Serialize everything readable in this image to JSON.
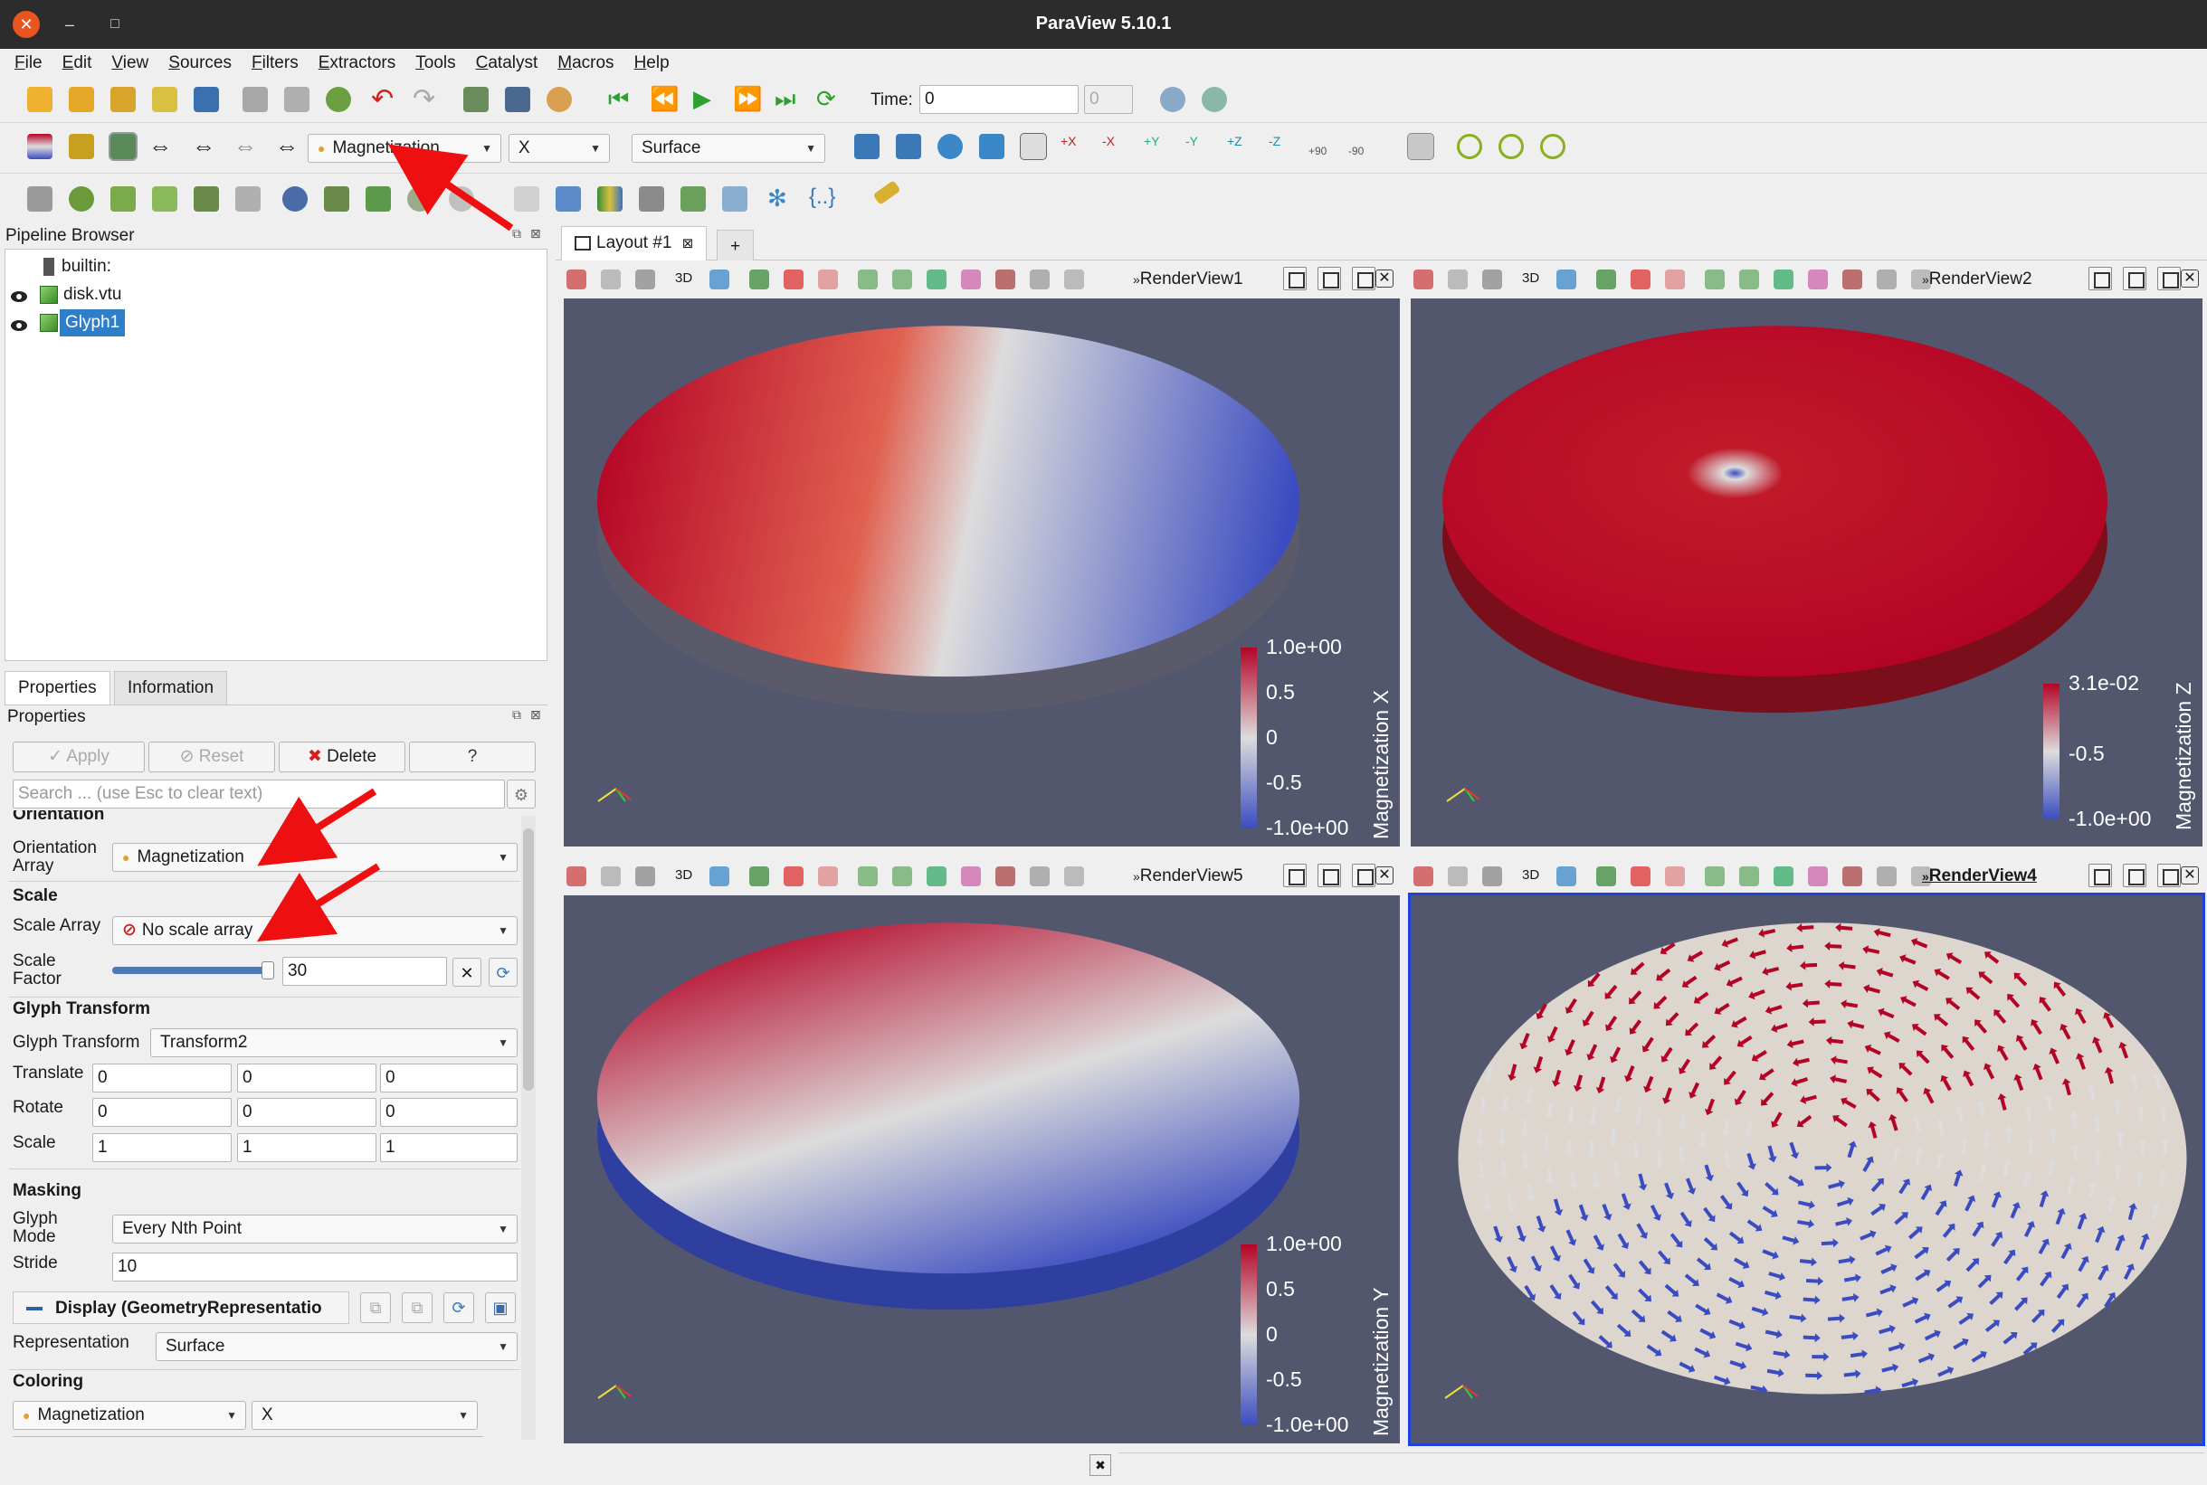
{
  "window": {
    "title": "ParaView 5.10.1"
  },
  "menu": [
    "File",
    "Edit",
    "View",
    "Sources",
    "Filters",
    "Extractors",
    "Tools",
    "Catalyst",
    "Macros",
    "Help"
  ],
  "toolbar": {
    "time_label": "Time:",
    "time_value": "0",
    "time_step": "0",
    "color_array": "Magnetization",
    "color_component": "X",
    "representation": "Surface",
    "camera_labels": [
      "+X",
      "-X",
      "+Y",
      "-Y",
      "+Z",
      "-Z",
      "+90",
      "-90"
    ]
  },
  "pipeline": {
    "header": "Pipeline Browser",
    "items": [
      {
        "label": "builtin:"
      },
      {
        "label": "disk.vtu"
      },
      {
        "label": "Glyph1"
      }
    ]
  },
  "tabs": {
    "properties": "Properties",
    "information": "Information"
  },
  "properties": {
    "header": "Properties",
    "apply": "Apply",
    "reset": "Reset",
    "delete": "Delete",
    "help": "?",
    "search_placeholder": "Search ... (use Esc to clear text)",
    "orientation_section": "Orientation",
    "orientation_array_label": "Orientation Array",
    "orientation_array": "Magnetization",
    "scale_section": "Scale",
    "scale_array_label": "Scale Array",
    "scale_array": "No scale array",
    "scale_factor_label": "Scale Factor",
    "scale_factor": "30",
    "scale_factor_fraction": 0.98,
    "glyph_transform_section": "Glyph Transform",
    "glyph_transform_label": "Glyph Transform",
    "glyph_transform": "Transform2",
    "translate_label": "Translate",
    "translate": [
      "0",
      "0",
      "0"
    ],
    "rotate_label": "Rotate",
    "rotate": [
      "0",
      "0",
      "0"
    ],
    "scale_label": "Scale",
    "scale": [
      "1",
      "1",
      "1"
    ],
    "masking_section": "Masking",
    "glyph_mode_label": "Glyph Mode",
    "glyph_mode": "Every Nth Point",
    "stride_label": "Stride",
    "stride": "10",
    "display_section": "Display (GeometryRepresentatio",
    "representation_label": "Representation",
    "representation": "Surface",
    "coloring_section": "Coloring",
    "coloring_array": "Magnetization",
    "coloring_component": "X"
  },
  "layout": {
    "tab": "Layout #1",
    "add": "+"
  },
  "views": [
    {
      "name": "RenderView1",
      "mode": "3D",
      "colorbar": {
        "title": "Magnetization X",
        "max": "1.0e+00",
        "ticks": [
          "0.5",
          "0",
          "-0.5"
        ],
        "min": "-1.0e+00"
      }
    },
    {
      "name": "RenderView2",
      "mode": "3D",
      "colorbar": {
        "title": "Magnetization Z",
        "max": "3.1e-02",
        "ticks": [
          "-0.5"
        ],
        "min": "-1.0e+00"
      }
    },
    {
      "name": "RenderView5",
      "mode": "3D",
      "colorbar": {
        "title": "Magnetization Y",
        "max": "1.0e+00",
        "ticks": [
          "0.5",
          "0",
          "-0.5"
        ],
        "min": "-1.0e+00"
      }
    },
    {
      "name": "RenderView4",
      "mode": "3D"
    }
  ],
  "colors": {
    "cool": "#3b4cc0",
    "warm": "#b40426",
    "neutral": "#dddcdc",
    "view_bg": "#52576e",
    "selection": "#2f7fc8",
    "annotation": "#ff0000"
  }
}
